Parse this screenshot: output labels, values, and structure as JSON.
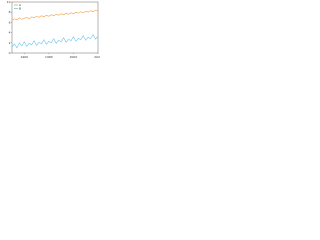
{
  "chart_data": {
    "type": "line",
    "xlim": [
      1950,
      2020
    ],
    "xticks": [
      1960,
      1980,
      2000,
      2020
    ],
    "ylim": [
      0,
      10
    ],
    "yticks": [
      0,
      2,
      4,
      6,
      8,
      10
    ],
    "legend": "upper left",
    "x": [
      1950,
      1952,
      1954,
      1956,
      1958,
      1960,
      1962,
      1964,
      1966,
      1968,
      1970,
      1972,
      1974,
      1976,
      1978,
      1980,
      1982,
      1984,
      1986,
      1988,
      1990,
      1992,
      1994,
      1996,
      1998,
      2000,
      2002,
      2004,
      2006,
      2008,
      2010,
      2012,
      2014,
      2016,
      2018,
      2020
    ],
    "series": [
      {
        "name": "A",
        "color": "#f5a04a",
        "values": [
          6.4,
          6.7,
          6.5,
          6.9,
          6.6,
          6.8,
          7.0,
          6.7,
          7.1,
          6.9,
          7.2,
          7.0,
          7.3,
          7.1,
          7.4,
          7.2,
          7.5,
          7.3,
          7.6,
          7.4,
          7.7,
          7.5,
          7.8,
          7.6,
          7.9,
          7.7,
          8.0,
          7.8,
          8.1,
          7.9,
          8.2,
          8.0,
          8.3,
          8.1,
          8.4,
          8.2
        ]
      },
      {
        "name": "B",
        "color": "#6ec6f0",
        "values": [
          1.2,
          1.8,
          1.0,
          2.0,
          1.4,
          2.2,
          1.3,
          1.9,
          1.6,
          2.4,
          1.5,
          2.1,
          1.8,
          2.6,
          1.7,
          2.3,
          2.0,
          2.8,
          1.9,
          2.5,
          2.2,
          3.0,
          2.1,
          2.7,
          2.4,
          3.2,
          2.3,
          2.9,
          2.6,
          3.4,
          2.5,
          3.1,
          2.8,
          3.6,
          2.7,
          3.3
        ]
      }
    ]
  }
}
